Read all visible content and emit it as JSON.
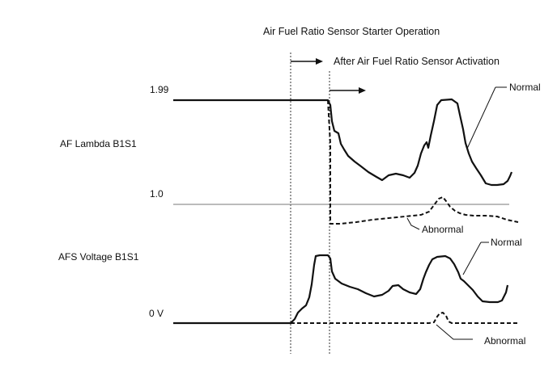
{
  "header": {
    "starter_operation": "Air Fuel Ratio Sensor Starter Operation",
    "after_activation": "After Air Fuel Ratio Sensor Activation"
  },
  "af_lambda": {
    "label": "AF Lambda B1S1",
    "tick_high": "1.99",
    "tick_mid": "1.0",
    "normal_label": "Normal",
    "abnormal_label": "Abnormal"
  },
  "afs_voltage": {
    "label": "AFS Voltage B1S1",
    "tick_zero": "0 V",
    "normal_label": "Normal",
    "abnormal_label": "Abnormal"
  },
  "colors": {
    "ink": "#111111",
    "reference_line": "#777777"
  }
}
